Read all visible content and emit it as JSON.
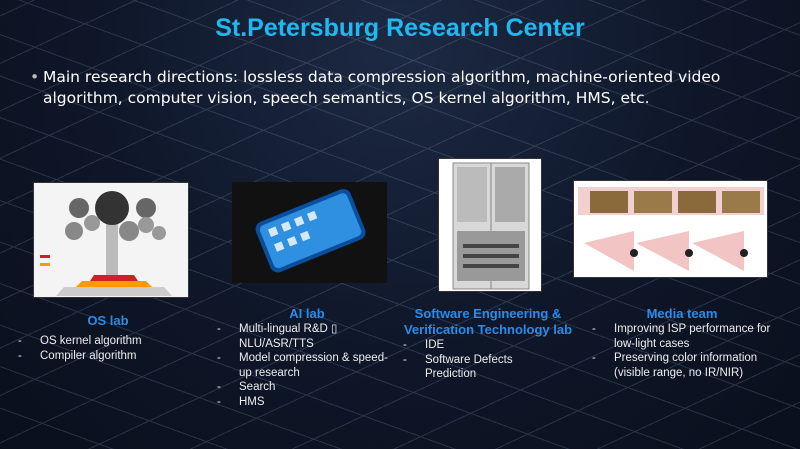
{
  "title": "St.Petersburg Research Center",
  "intro": "Main research directions:  lossless data compression algorithm, machine-oriented video algorithm, computer vision, speech semantics, OS kernel algorithm, HMS, etc.",
  "labs": [
    {
      "name": "OS lab",
      "items": [
        "OS kernel algorithm",
        "Compiler algorithm"
      ],
      "image": "ecosystem-tree-diagram"
    },
    {
      "name": "AI lab",
      "items": [
        "Multi-lingual R&D ▯ NLU/ASR/TTS",
        "Model compression & speed-up research",
        "Search",
        "HMS"
      ],
      "image": "smartphone-photo"
    },
    {
      "name": "Software Engineering & Verification Technology lab",
      "items": [
        "IDE",
        "Software Defects Prediction"
      ],
      "image": "server-cabinet-photo"
    },
    {
      "name": "Media team",
      "items": [
        "Improving ISP performance for low-light cases",
        "Preserving color information (visible range, no IR/NIR)"
      ],
      "image": "camera-diagram"
    }
  ]
}
